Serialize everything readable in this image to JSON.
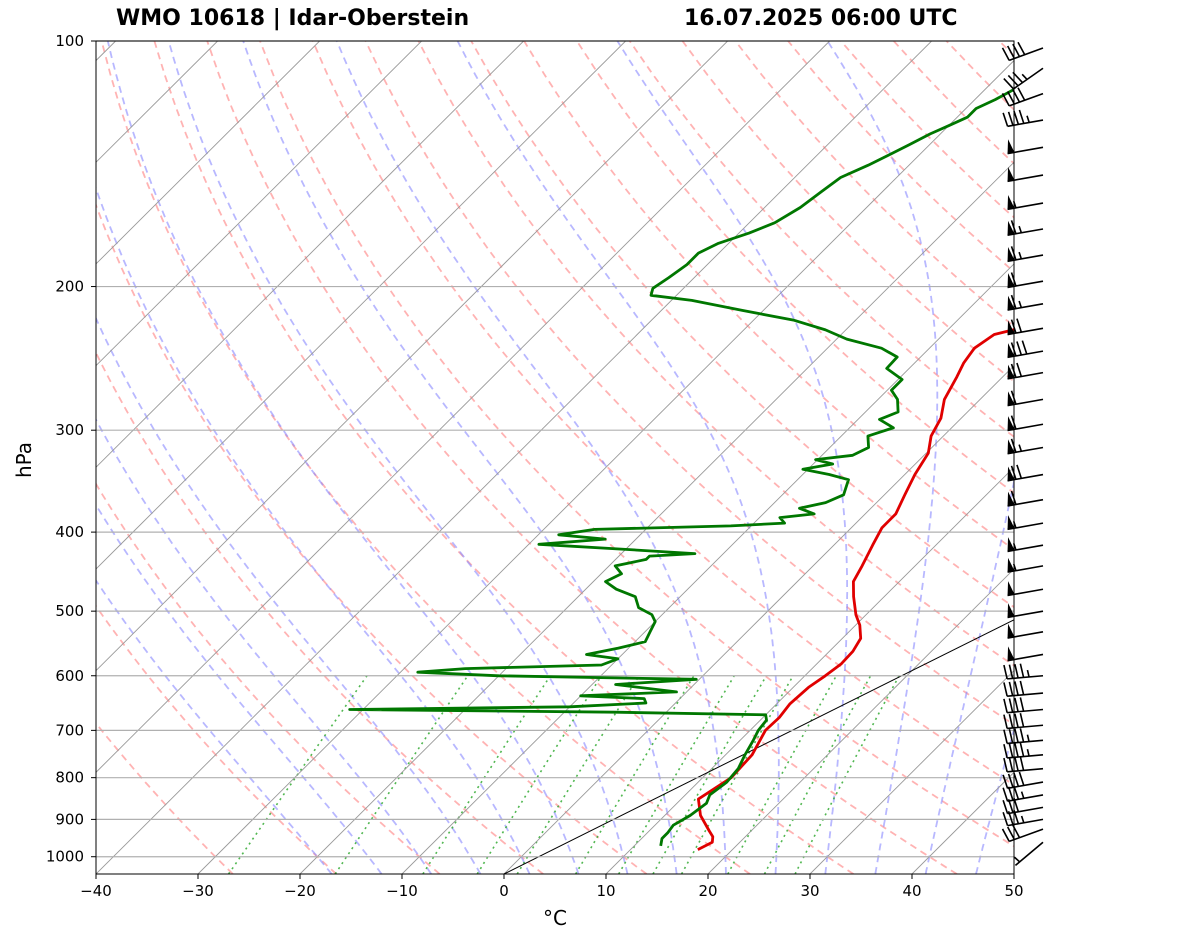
{
  "titles": {
    "left": "WMO 10618 | Idar-Oberstein",
    "right": "16.07.2025 06:00 UTC"
  },
  "chart_data": {
    "type": "line",
    "title": "WMO 10618 | Idar-Oberstein",
    "datetime": "16.07.2025 06:00 UTC",
    "xlabel": "°C",
    "ylabel": "hPa",
    "xlim": [
      -40,
      50
    ],
    "ylim": [
      1050,
      100
    ],
    "y_scale": "log",
    "grid": true,
    "x_ticks": [
      -40,
      -30,
      -20,
      -10,
      0,
      10,
      20,
      30,
      40,
      50
    ],
    "x_tick_labels": [
      "−40",
      "−30",
      "−20",
      "−10",
      "0",
      "10",
      "20",
      "30",
      "40",
      "50"
    ],
    "y_ticks": [
      1000,
      900,
      800,
      700,
      600,
      500,
      400,
      300,
      200,
      100
    ],
    "y_tick_labels": [
      "1000",
      "900",
      "800",
      "700",
      "600",
      "500",
      "400",
      "300",
      "200",
      "100"
    ],
    "skew_ref_line": {
      "p": [
        1050,
        250
      ],
      "x": [
        0,
        50
      ]
    },
    "series": [
      {
        "color": "#e00000",
        "points": [
          [
            16.6,
            980
          ],
          [
            17.3,
            960
          ],
          [
            16.8,
            945
          ],
          [
            15.9,
            930
          ],
          [
            13.5,
            890
          ],
          [
            11.7,
            850
          ],
          [
            12.8,
            800
          ],
          [
            12.6,
            750
          ],
          [
            11.5,
            700
          ],
          [
            11.6,
            675
          ],
          [
            11.3,
            650
          ],
          [
            11.5,
            620
          ],
          [
            12.0,
            600
          ],
          [
            12.4,
            580
          ],
          [
            12.3,
            560
          ],
          [
            11.8,
            540
          ],
          [
            10.4,
            520
          ],
          [
            9.0,
            505
          ],
          [
            7.0,
            480
          ],
          [
            5.5,
            460
          ],
          [
            4.8,
            440
          ],
          [
            3.8,
            415
          ],
          [
            3.0,
            395
          ],
          [
            3.0,
            380
          ],
          [
            2.0,
            360
          ],
          [
            1.0,
            340
          ],
          [
            0.2,
            320
          ],
          [
            -1.2,
            305
          ],
          [
            -2.0,
            290
          ],
          [
            -3.5,
            275
          ],
          [
            -4.5,
            258
          ],
          [
            -5.2,
            248
          ],
          [
            -5.6,
            238
          ],
          [
            -5.2,
            232
          ],
          [
            -5.0,
            229
          ],
          [
            -3.6,
            226
          ],
          [
            -2.5,
            220
          ],
          [
            -1.8,
            215
          ],
          [
            0.4,
            210
          ],
          [
            2.6,
            206
          ],
          [
            6.7,
            203
          ],
          [
            8.0,
            200
          ],
          [
            8.9,
            195
          ],
          [
            9.5,
            188
          ],
          [
            9.5,
            180
          ],
          [
            8.6,
            172
          ],
          [
            8.2,
            165
          ],
          [
            8.3,
            158
          ],
          [
            8.3,
            150
          ],
          [
            8.7,
            143
          ],
          [
            9.7,
            136
          ],
          [
            10.0,
            130
          ],
          [
            10.2,
            125
          ],
          [
            11.0,
            119
          ],
          [
            11.8,
            114
          ],
          [
            12.6,
            109
          ],
          [
            13.0,
            104
          ],
          [
            13.0,
            100
          ]
        ]
      },
      {
        "color": "#007700",
        "points": [
          [
            12.6,
            970
          ],
          [
            12.0,
            950
          ],
          [
            12.0,
            935
          ],
          [
            11.8,
            915
          ],
          [
            12.5,
            890
          ],
          [
            12.9,
            860
          ],
          [
            12.4,
            840
          ],
          [
            12.8,
            810
          ],
          [
            12.6,
            780
          ],
          [
            11.9,
            750
          ],
          [
            11.3,
            720
          ],
          [
            10.8,
            700
          ],
          [
            10.6,
            680
          ],
          [
            10.0,
            670
          ],
          [
            -5,
            665
          ],
          [
            -31.3,
            660
          ],
          [
            -10,
            655
          ],
          [
            -2.9,
            648
          ],
          [
            -3.5,
            640
          ],
          [
            -10,
            635
          ],
          [
            -1.0,
            628
          ],
          [
            -7.7,
            615
          ],
          [
            -0.3,
            606
          ],
          [
            -20,
            600
          ],
          [
            -28.3,
            594
          ],
          [
            -24,
            588
          ],
          [
            -11,
            582
          ],
          [
            -10,
            572
          ],
          [
            -13.5,
            565
          ],
          [
            -11,
            555
          ],
          [
            -9,
            545
          ],
          [
            -9.5,
            530
          ],
          [
            -10,
            515
          ],
          [
            -11,
            505
          ],
          [
            -13,
            495
          ],
          [
            -14.4,
            480
          ],
          [
            -17,
            470
          ],
          [
            -18.8,
            460
          ],
          [
            -18,
            450
          ],
          [
            -19.4,
            440
          ],
          [
            -17,
            432
          ],
          [
            -17,
            428
          ],
          [
            -12.8,
            425
          ],
          [
            -20,
            420
          ],
          [
            -29,
            414
          ],
          [
            -23,
            408
          ],
          [
            -28,
            403
          ],
          [
            -25,
            397
          ],
          [
            -12,
            393
          ],
          [
            -7,
            390
          ],
          [
            -8,
            384
          ],
          [
            -5,
            380
          ],
          [
            -7,
            374
          ],
          [
            -5,
            368
          ],
          [
            -4,
            360
          ],
          [
            -5,
            345
          ],
          [
            -7.4,
            340
          ],
          [
            -10.5,
            335
          ],
          [
            -8.1,
            330
          ],
          [
            -10.2,
            326
          ],
          [
            -7,
            322
          ],
          [
            -6.2,
            315
          ],
          [
            -7.4,
            305
          ],
          [
            -5.7,
            298
          ],
          [
            -7.9,
            291
          ],
          [
            -6.8,
            285
          ],
          [
            -8.1,
            275
          ],
          [
            -9.6,
            268
          ],
          [
            -9.6,
            260
          ],
          [
            -12.2,
            252
          ],
          [
            -12.3,
            244
          ],
          [
            -14.7,
            238
          ],
          [
            -19,
            232
          ],
          [
            -22,
            226
          ],
          [
            -26,
            220
          ],
          [
            -32,
            214
          ],
          [
            -38,
            208
          ],
          [
            -42.5,
            205
          ],
          [
            -43,
            201
          ],
          [
            -42.5,
            195
          ],
          [
            -42,
            188
          ],
          [
            -42,
            182
          ],
          [
            -41,
            177
          ],
          [
            -39,
            172
          ],
          [
            -37.5,
            167
          ],
          [
            -36.5,
            160
          ],
          [
            -36,
            153
          ],
          [
            -35.5,
            147
          ],
          [
            -34,
            142
          ],
          [
            -33,
            138
          ],
          [
            -32,
            134
          ],
          [
            -31,
            130
          ],
          [
            -30,
            127
          ],
          [
            -29,
            124
          ],
          [
            -29,
            121
          ],
          [
            -28,
            118
          ],
          [
            -27,
            114
          ],
          [
            -25.5,
            110
          ],
          [
            -23.5,
            106
          ],
          [
            -22,
            103
          ],
          [
            -21,
            100
          ]
        ]
      }
    ],
    "wind_barbs": [
      {
        "p": 960,
        "speed_kt": 5,
        "dir": 230
      },
      {
        "p": 925,
        "speed_kt": 30,
        "dir": 250
      },
      {
        "p": 900,
        "speed_kt": 35,
        "dir": 260
      },
      {
        "p": 870,
        "speed_kt": 30,
        "dir": 260
      },
      {
        "p": 840,
        "speed_kt": 35,
        "dir": 260
      },
      {
        "p": 810,
        "speed_kt": 40,
        "dir": 260
      },
      {
        "p": 780,
        "speed_kt": 40,
        "dir": 265
      },
      {
        "p": 750,
        "speed_kt": 45,
        "dir": 265
      },
      {
        "p": 720,
        "speed_kt": 45,
        "dir": 265
      },
      {
        "p": 690,
        "speed_kt": 40,
        "dir": 265
      },
      {
        "p": 660,
        "speed_kt": 40,
        "dir": 265
      },
      {
        "p": 630,
        "speed_kt": 40,
        "dir": 265
      },
      {
        "p": 600,
        "speed_kt": 45,
        "dir": 265
      },
      {
        "p": 565,
        "speed_kt": 50,
        "dir": 260
      },
      {
        "p": 530,
        "speed_kt": 50,
        "dir": 260
      },
      {
        "p": 500,
        "speed_kt": 50,
        "dir": 260
      },
      {
        "p": 470,
        "speed_kt": 50,
        "dir": 260
      },
      {
        "p": 440,
        "speed_kt": 55,
        "dir": 260
      },
      {
        "p": 415,
        "speed_kt": 55,
        "dir": 260
      },
      {
        "p": 390,
        "speed_kt": 55,
        "dir": 260
      },
      {
        "p": 365,
        "speed_kt": 60,
        "dir": 260
      },
      {
        "p": 340,
        "speed_kt": 70,
        "dir": 260
      },
      {
        "p": 315,
        "speed_kt": 65,
        "dir": 260
      },
      {
        "p": 295,
        "speed_kt": 60,
        "dir": 260
      },
      {
        "p": 275,
        "speed_kt": 60,
        "dir": 260
      },
      {
        "p": 255,
        "speed_kt": 70,
        "dir": 260
      },
      {
        "p": 240,
        "speed_kt": 80,
        "dir": 260
      },
      {
        "p": 225,
        "speed_kt": 70,
        "dir": 260
      },
      {
        "p": 210,
        "speed_kt": 65,
        "dir": 260
      },
      {
        "p": 197,
        "speed_kt": 60,
        "dir": 260
      },
      {
        "p": 183,
        "speed_kt": 65,
        "dir": 260
      },
      {
        "p": 170,
        "speed_kt": 65,
        "dir": 260
      },
      {
        "p": 158,
        "speed_kt": 55,
        "dir": 260
      },
      {
        "p": 146,
        "speed_kt": 50,
        "dir": 260
      },
      {
        "p": 135,
        "speed_kt": 50,
        "dir": 260
      },
      {
        "p": 125,
        "speed_kt": 45,
        "dir": 260
      },
      {
        "p": 116,
        "speed_kt": 40,
        "dir": 250
      },
      {
        "p": 108,
        "speed_kt": 35,
        "dir": 235
      },
      {
        "p": 102,
        "speed_kt": 40,
        "dir": 250
      }
    ]
  }
}
